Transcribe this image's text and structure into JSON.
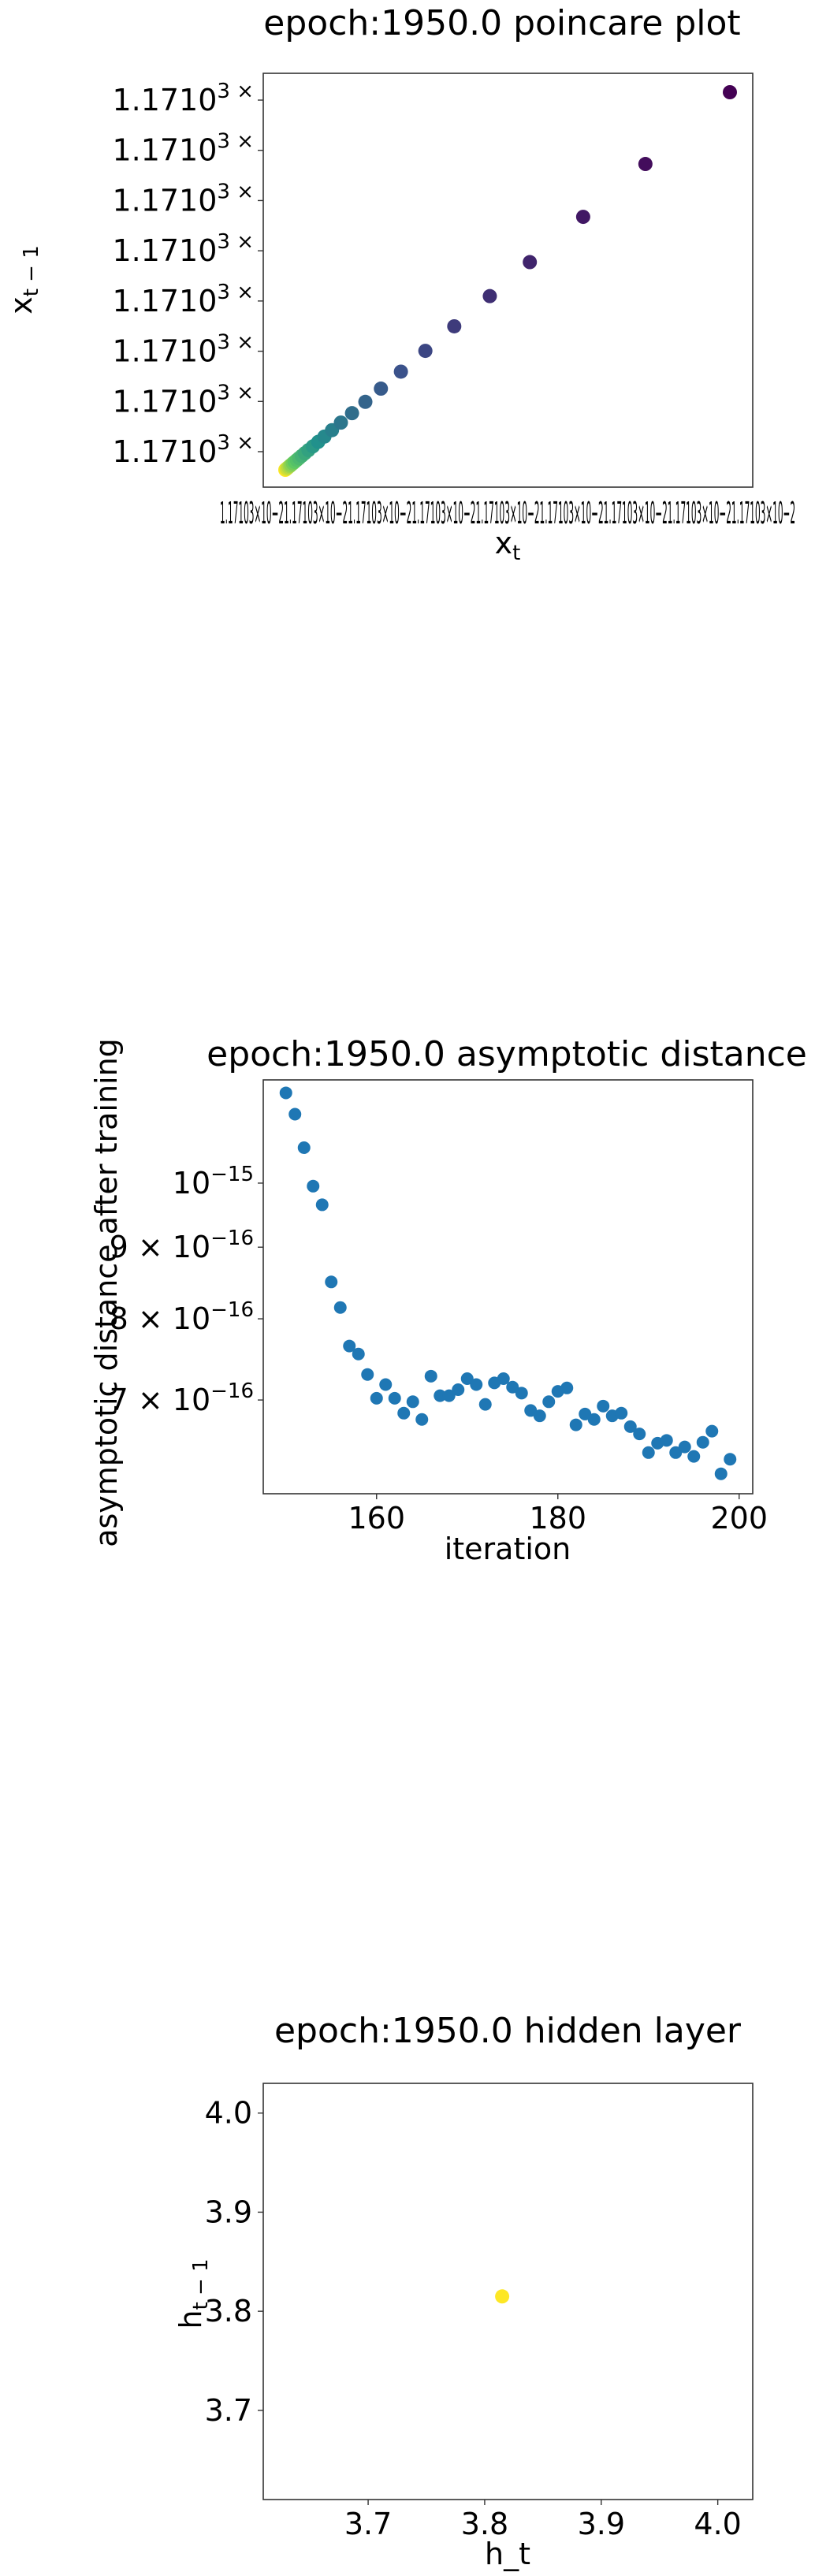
{
  "chart_data": [
    {
      "type": "scatter",
      "title": "epoch:1950.0 poincare plot",
      "xlabel": "x_t",
      "ylabel": "x_{t-1}",
      "colormap": "viridis",
      "x_tick_text": "1.17103×10−21.17103×10−21.17103×10−21.17103×10−21.17103×10−21.17103×10−21.17103×10−21.17103×10−21.17103×10−2",
      "y_ticks": [
        "1.17103 × 10−2",
        "1.17103 × 10−2",
        "1.17103 × 10−2",
        "1.17103 × 10−2",
        "1.17103 × 10−2",
        "1.17103 × 10−2",
        "1.17103 × 10−2",
        "1.17103 × 10−2"
      ],
      "points_norm": [
        1.0,
        0.81,
        0.67,
        0.55,
        0.46,
        0.38,
        0.315,
        0.26,
        0.215,
        0.18,
        0.15,
        0.125,
        0.105,
        0.088,
        0.074,
        0.062,
        0.052,
        0.044,
        0.037,
        0.031,
        0.026,
        0.021,
        0.017,
        0.013,
        0.01,
        0.007,
        0.004,
        0.002,
        0.0
      ],
      "note_values": "x and y equal at every point"
    },
    {
      "type": "scatter",
      "title": "epoch:1950.0 asymptotic distance",
      "xlabel": "iteration",
      "ylabel": "asymptotic distance after training",
      "xlim": [
        147.5,
        201.5
      ],
      "ylim": [
        6e-16,
        1.185e-15
      ],
      "x_ticks": [
        "160",
        "180",
        "200"
      ],
      "x_tick_values": [
        160,
        180,
        200
      ],
      "y_ticks": [
        {
          "m": "",
          "e": "−15",
          "v": 1e-15
        },
        {
          "m": "9 × ",
          "e": "−16",
          "v": 9e-16
        },
        {
          "m": "8 × ",
          "e": "−16",
          "v": 8e-16
        },
        {
          "m": "7 × ",
          "e": "−16",
          "v": 7e-16
        }
      ],
      "color": "#1f77b4",
      "x": [
        150,
        151,
        152,
        153,
        154,
        155,
        156,
        157,
        158,
        159,
        160,
        161,
        162,
        163,
        164,
        165,
        166,
        167,
        168,
        169,
        170,
        171,
        172,
        173,
        174,
        175,
        176,
        177,
        178,
        179,
        180,
        181,
        182,
        183,
        184,
        185,
        186,
        187,
        188,
        189,
        190,
        191,
        192,
        193,
        194,
        195,
        196,
        197,
        198,
        199
      ],
      "y": [
        1.16e-15,
        1.12e-15,
        1.06e-15,
        9.95e-16,
        9.65e-16,
        8.5e-16,
        8.15e-16,
        7.65e-16,
        7.55e-16,
        7.3e-16,
        7.02e-16,
        7.18e-16,
        7.02e-16,
        6.85e-16,
        6.98e-16,
        6.78e-16,
        7.28e-16,
        7.05e-16,
        7.05e-16,
        7.12e-16,
        7.25e-16,
        7.18e-16,
        6.95e-16,
        7.2e-16,
        7.25e-16,
        7.15e-16,
        7.08e-16,
        6.88e-16,
        6.82e-16,
        6.98e-16,
        7.1e-16,
        7.14e-16,
        6.72e-16,
        6.84e-16,
        6.78e-16,
        6.93e-16,
        6.82e-16,
        6.85e-16,
        6.7e-16,
        6.62e-16,
        6.42e-16,
        6.52e-16,
        6.55e-16,
        6.42e-16,
        6.48e-16,
        6.38e-16,
        6.53e-16,
        6.65e-16,
        6.2e-16,
        6.35e-16
      ]
    },
    {
      "type": "scatter",
      "title": "epoch:1950.0 hidden layer",
      "xlabel": "h_t",
      "ylabel": "h_{t-1}",
      "xlim": [
        3.61,
        4.03
      ],
      "ylim": [
        3.61,
        4.03
      ],
      "x_ticks": [
        "3.7",
        "3.8",
        "3.9",
        "4.0"
      ],
      "y_ticks": [
        "3.7",
        "3.8",
        "3.9",
        "4.0"
      ],
      "tick_values": [
        3.7,
        3.8,
        3.9,
        4.0
      ],
      "color": "#fde725",
      "x": [
        3.815
      ],
      "y": [
        3.815
      ]
    }
  ]
}
